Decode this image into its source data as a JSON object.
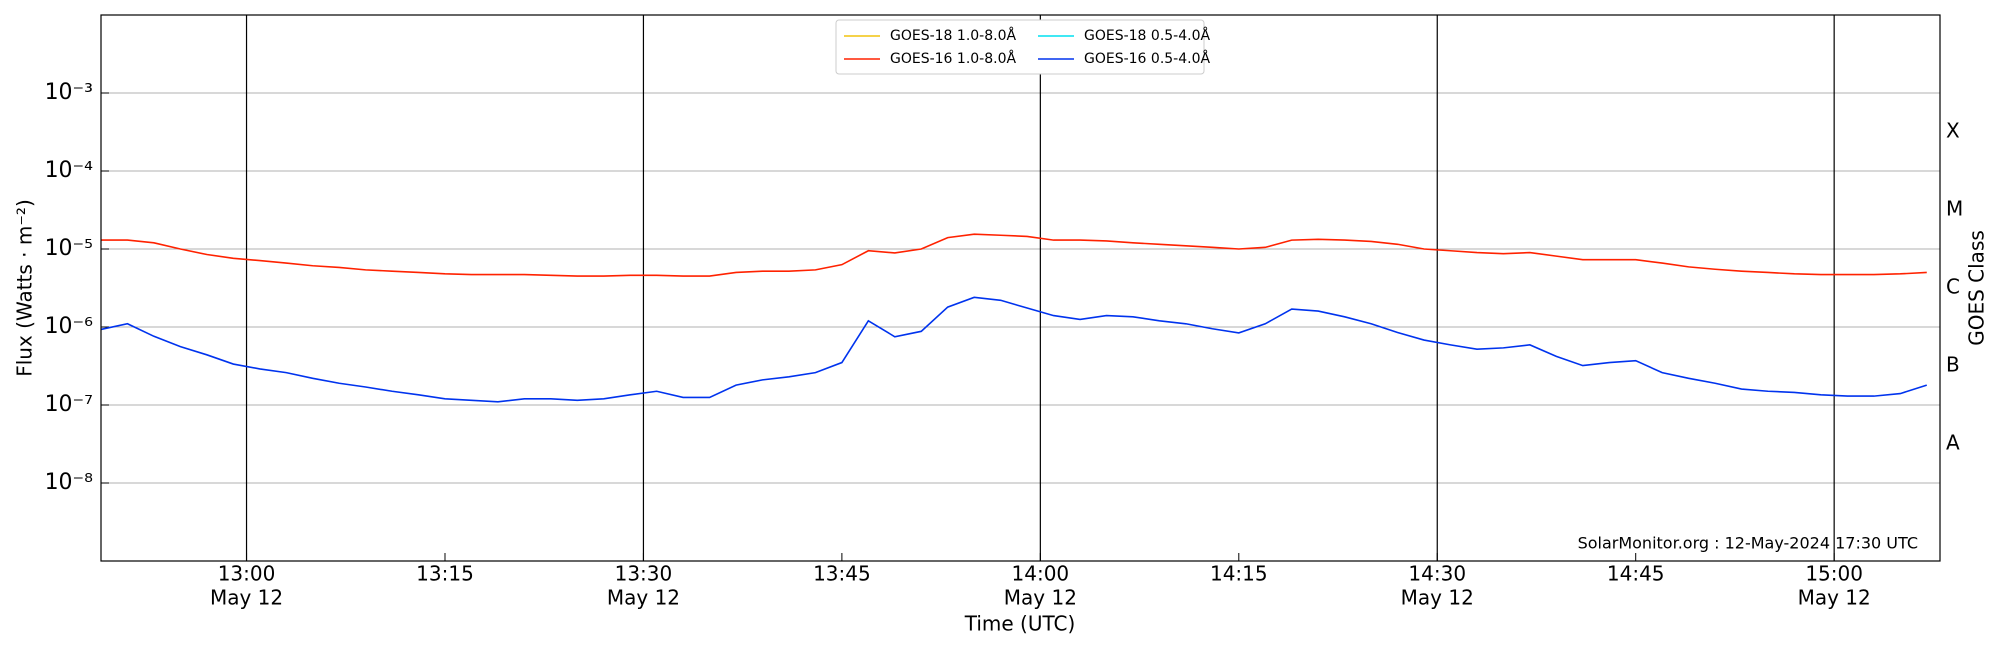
{
  "chart_data": {
    "type": "line",
    "xlabel": "Time (UTC)",
    "ylabel": "Flux (Watts · m⁻²)",
    "y2label": "GOES Class",
    "annotation": "SolarMonitor.org : 12-May-2024 17:30 UTC",
    "log_y": true,
    "grid": true,
    "legend": "top-center",
    "xlim": [
      "12:49",
      "15:08"
    ],
    "xticks": [
      {
        "value": "13:00",
        "label": "13:00",
        "date": "May 12"
      },
      {
        "value": "13:15",
        "label": "13:15"
      },
      {
        "value": "13:30",
        "label": "13:30",
        "date": "May 12"
      },
      {
        "value": "13:45",
        "label": "13:45"
      },
      {
        "value": "14:00",
        "label": "14:00",
        "date": "May 12"
      },
      {
        "value": "14:15",
        "label": "14:15"
      },
      {
        "value": "14:30",
        "label": "14:30",
        "date": "May 12"
      },
      {
        "value": "14:45",
        "label": "14:45"
      },
      {
        "value": "15:00",
        "label": "15:00",
        "date": "May 12"
      }
    ],
    "ylim": [
      1e-09,
      0.01
    ],
    "yticks": [
      {
        "value": 1e-08,
        "label": "10⁻⁸"
      },
      {
        "value": 1e-07,
        "label": "10⁻⁷"
      },
      {
        "value": 1e-06,
        "label": "10⁻⁶"
      },
      {
        "value": 1e-05,
        "label": "10⁻⁵"
      },
      {
        "value": 0.0001,
        "label": "10⁻⁴"
      },
      {
        "value": 0.001,
        "label": "10⁻³"
      }
    ],
    "y2lim": [
      1e-09,
      0.01
    ],
    "y2ticks": [
      {
        "value": 3.162e-08,
        "label": "A"
      },
      {
        "value": 3.162e-07,
        "label": "B"
      },
      {
        "value": 3.162e-06,
        "label": "C"
      },
      {
        "value": 3.162e-05,
        "label": "M"
      },
      {
        "value": 0.0003162,
        "label": "X"
      }
    ],
    "x": [
      "12:49",
      "12:51",
      "12:53",
      "12:55",
      "12:57",
      "12:59",
      "13:01",
      "13:03",
      "13:05",
      "13:07",
      "13:09",
      "13:11",
      "13:13",
      "13:15",
      "13:17",
      "13:19",
      "13:21",
      "13:23",
      "13:25",
      "13:27",
      "13:29",
      "13:31",
      "13:33",
      "13:35",
      "13:37",
      "13:39",
      "13:41",
      "13:43",
      "13:45",
      "13:47",
      "13:49",
      "13:51",
      "13:53",
      "13:55",
      "13:57",
      "13:59",
      "14:01",
      "14:03",
      "14:05",
      "14:07",
      "14:09",
      "14:11",
      "14:13",
      "14:15",
      "14:17",
      "14:19",
      "14:21",
      "14:23",
      "14:25",
      "14:27",
      "14:29",
      "14:31",
      "14:33",
      "14:35",
      "14:37",
      "14:39",
      "14:41",
      "14:43",
      "14:45",
      "14:47",
      "14:49",
      "14:51",
      "14:53",
      "14:55",
      "14:57",
      "14:59",
      "15:01",
      "15:03",
      "15:05",
      "15:07"
    ],
    "series": [
      {
        "name": "GOES-18 1.0-8.0Å",
        "color": "#f2c40f",
        "values": [
          null,
          null,
          null,
          null,
          null,
          null,
          null,
          null,
          null,
          null,
          null,
          null,
          null,
          null,
          null,
          null,
          null,
          null,
          null,
          null,
          null,
          null,
          null,
          null,
          null,
          null,
          null,
          null,
          null,
          null,
          null,
          null,
          null,
          null,
          null,
          null,
          null,
          null,
          null,
          null,
          null,
          null,
          null,
          null,
          null,
          null,
          null,
          null,
          null,
          null,
          null,
          null,
          null,
          null,
          null,
          null,
          null,
          null,
          null,
          null,
          null,
          null,
          null,
          null,
          null,
          null,
          null,
          null,
          null,
          null
        ]
      },
      {
        "name": "GOES-16 1.0-8.0Å",
        "color": "#ff2200",
        "values": [
          1.3e-05,
          1.3e-05,
          1.2e-05,
          1e-05,
          8.5e-06,
          7.6e-06,
          7.1e-06,
          6.6e-06,
          6.1e-06,
          5.8e-06,
          5.4e-06,
          5.2e-06,
          5e-06,
          4.8e-06,
          4.7e-06,
          4.7e-06,
          4.7e-06,
          4.6e-06,
          4.5e-06,
          4.5e-06,
          4.6e-06,
          4.6e-06,
          4.5e-06,
          4.5e-06,
          5e-06,
          5.2e-06,
          5.2e-06,
          5.4e-06,
          6.3e-06,
          9.5e-06,
          8.9e-06,
          1e-05,
          1.4e-05,
          1.55e-05,
          1.5e-05,
          1.45e-05,
          1.3e-05,
          1.3e-05,
          1.27e-05,
          1.2e-05,
          1.15e-05,
          1.1e-05,
          1.05e-05,
          1e-05,
          1.05e-05,
          1.3e-05,
          1.33e-05,
          1.3e-05,
          1.25e-05,
          1.15e-05,
          1e-05,
          9.5e-06,
          9e-06,
          8.7e-06,
          9e-06,
          8.1e-06,
          7.3e-06,
          7.3e-06,
          7.3e-06,
          6.6e-06,
          5.9e-06,
          5.5e-06,
          5.2e-06,
          5e-06,
          4.8e-06,
          4.7e-06,
          4.7e-06,
          4.7e-06,
          4.8e-06,
          5e-06
        ]
      },
      {
        "name": "GOES-18 0.5-4.0Å",
        "color": "#00e0f0",
        "values": [
          null,
          null,
          null,
          null,
          null,
          null,
          null,
          null,
          null,
          null,
          null,
          null,
          null,
          null,
          null,
          null,
          null,
          null,
          null,
          null,
          null,
          null,
          null,
          null,
          null,
          null,
          null,
          null,
          null,
          null,
          null,
          null,
          null,
          null,
          null,
          null,
          null,
          null,
          null,
          null,
          null,
          null,
          null,
          null,
          null,
          null,
          null,
          null,
          null,
          null,
          null,
          null,
          null,
          null,
          null,
          null,
          null,
          null,
          null,
          null,
          null,
          null,
          null,
          null,
          null,
          null,
          null,
          null,
          null,
          null
        ]
      },
      {
        "name": "GOES-16 0.5-4.0Å",
        "color": "#0033ee",
        "values": [
          9.3e-07,
          1.1e-06,
          7.6e-07,
          5.6e-07,
          4.4e-07,
          3.35e-07,
          2.9e-07,
          2.6e-07,
          2.2e-07,
          1.9e-07,
          1.7e-07,
          1.5e-07,
          1.35e-07,
          1.2e-07,
          1.15e-07,
          1.1e-07,
          1.2e-07,
          1.2e-07,
          1.15e-07,
          1.2e-07,
          1.35e-07,
          1.5e-07,
          1.25e-07,
          1.25e-07,
          1.8e-07,
          2.1e-07,
          2.3e-07,
          2.6e-07,
          3.5e-07,
          1.2e-06,
          7.5e-07,
          8.8e-07,
          1.8e-06,
          2.4e-06,
          2.2e-06,
          1.75e-06,
          1.4e-06,
          1.25e-06,
          1.4e-06,
          1.35e-06,
          1.2e-06,
          1.1e-06,
          9.5e-07,
          8.4e-07,
          1.1e-06,
          1.7e-06,
          1.6e-06,
          1.35e-06,
          1.1e-06,
          8.5e-07,
          6.8e-07,
          5.9e-07,
          5.2e-07,
          5.4e-07,
          5.9e-07,
          4.2e-07,
          3.2e-07,
          3.5e-07,
          3.7e-07,
          2.6e-07,
          2.2e-07,
          1.9e-07,
          1.6e-07,
          1.5e-07,
          1.45e-07,
          1.35e-07,
          1.3e-07,
          1.3e-07,
          1.4e-07,
          1.8e-07
        ]
      }
    ]
  }
}
